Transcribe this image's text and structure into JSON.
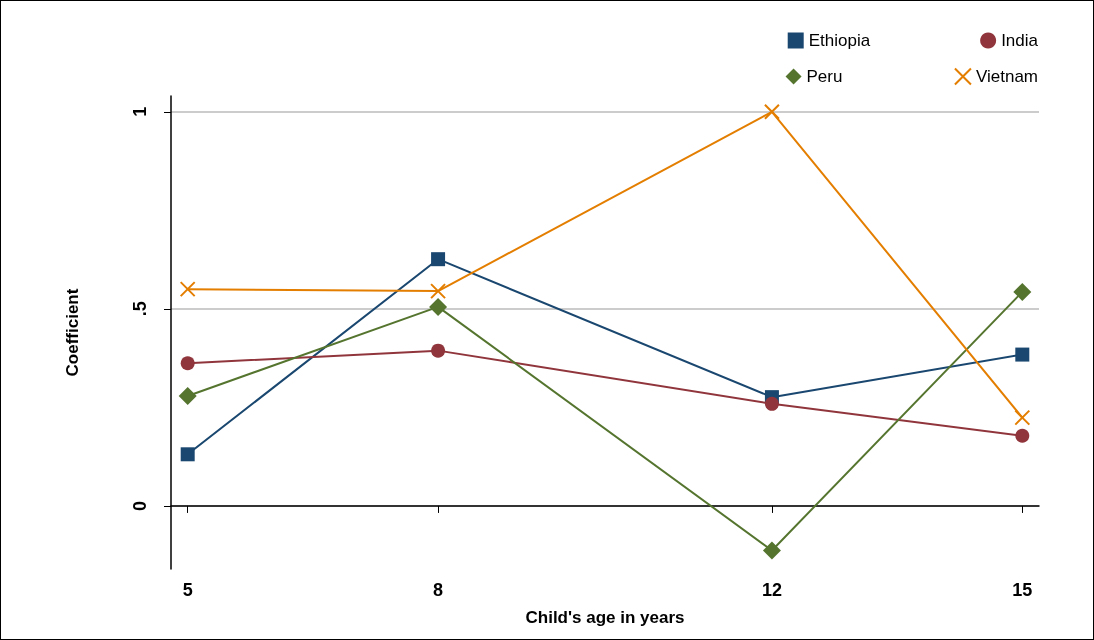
{
  "chart_data": {
    "type": "line",
    "xlabel": "Child's age in years",
    "ylabel": "Coefficient",
    "x": [
      5,
      8,
      12,
      15
    ],
    "series": [
      {
        "name": "Ethiopia",
        "color": "#1a476f",
        "marker": "square",
        "values": [
          0.131,
          0.626,
          0.276,
          0.384
        ]
      },
      {
        "name": "India",
        "color": "#90353b",
        "marker": "circle",
        "values": [
          0.362,
          0.394,
          0.259,
          0.178
        ]
      },
      {
        "name": "Peru",
        "color": "#55752f",
        "marker": "diamond",
        "values": [
          0.279,
          0.505,
          -0.113,
          0.543
        ]
      },
      {
        "name": "Vietnam",
        "color": "#e37e00",
        "marker": "cross",
        "values": [
          0.55,
          0.545,
          1.0,
          0.224
        ]
      }
    ],
    "xlim": [
      4.8,
      15.2
    ],
    "xticks": [
      5,
      8,
      12,
      15
    ],
    "ylim": [
      -0.16,
      1.04
    ],
    "yticks": [
      {
        "value": 0,
        "label": "0"
      },
      {
        "value": 0.5,
        "label": ".5"
      },
      {
        "value": 1,
        "label": "1"
      }
    ],
    "grid": "y",
    "legend": "top right",
    "line_style": "solid"
  }
}
